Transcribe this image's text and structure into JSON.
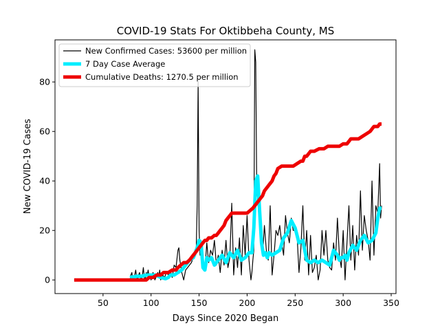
{
  "chart_data": {
    "type": "line",
    "title": "COVID-19 Stats For Oktibbeha County, MS",
    "xlabel": "Days Since 2020 Began",
    "ylabel": "New COVID-19 Cases",
    "xlim": [
      0,
      355
    ],
    "ylim": [
      -5.5,
      97
    ],
    "xticks": [
      50,
      100,
      150,
      200,
      250,
      300,
      350
    ],
    "yticks": [
      0,
      20,
      40,
      60,
      80
    ],
    "grid": false,
    "legend_position": "top-left",
    "series": [
      {
        "name": "New Confirmed Cases: 53600 per million",
        "color": "#000000",
        "line_width": 1.2,
        "x": [
          20,
          78,
          79,
          80,
          81,
          82,
          83,
          84,
          85,
          86,
          87,
          88,
          89,
          90,
          91,
          92,
          93,
          94,
          95,
          96,
          97,
          98,
          99,
          100,
          101,
          102,
          103,
          104,
          105,
          106,
          107,
          108,
          109,
          110,
          112,
          114,
          116,
          118,
          120,
          122,
          124,
          126,
          128,
          129,
          130,
          132,
          134,
          136,
          138,
          140,
          142,
          144,
          146,
          147,
          148,
          149,
          150,
          151,
          152,
          154,
          156,
          158,
          160,
          162,
          164,
          166,
          168,
          170,
          172,
          174,
          176,
          178,
          180,
          182,
          184,
          186,
          188,
          190,
          192,
          194,
          196,
          198,
          200,
          202,
          204,
          205,
          206,
          207,
          208,
          209,
          210,
          212,
          214,
          216,
          218,
          220,
          222,
          224,
          226,
          228,
          230,
          232,
          234,
          236,
          238,
          240,
          242,
          244,
          246,
          248,
          250,
          252,
          254,
          256,
          258,
          260,
          262,
          264,
          266,
          268,
          270,
          272,
          274,
          276,
          278,
          280,
          282,
          284,
          286,
          288,
          290,
          292,
          294,
          296,
          298,
          300,
          302,
          304,
          306,
          308,
          310,
          312,
          314,
          316,
          318,
          320,
          322,
          324,
          326,
          328,
          330,
          332,
          334,
          336,
          338,
          339,
          340
        ],
        "values": [
          0,
          0,
          2,
          3,
          0,
          1,
          2,
          4,
          1,
          0,
          2,
          3,
          1,
          0,
          2,
          5,
          1,
          0,
          3,
          2,
          4,
          1,
          2,
          0,
          1,
          3,
          2,
          0,
          1,
          2,
          3,
          1,
          4,
          0,
          2,
          1,
          3,
          2,
          4,
          1,
          6,
          5,
          12,
          13,
          8,
          3,
          0,
          4,
          5,
          6,
          7,
          9,
          10,
          12,
          30,
          80,
          20,
          10,
          16,
          8,
          4,
          15,
          7,
          12,
          10,
          16,
          6,
          10,
          3,
          12,
          6,
          16,
          5,
          9,
          31,
          2,
          13,
          5,
          17,
          2,
          22,
          10,
          26,
          8,
          0,
          3,
          8,
          12,
          93,
          88,
          38,
          27,
          18,
          10,
          22,
          12,
          8,
          30,
          2,
          10,
          20,
          18,
          22,
          15,
          10,
          26,
          19,
          15,
          25,
          20,
          20,
          18,
          3,
          13,
          30,
          8,
          20,
          2,
          18,
          3,
          5,
          10,
          0,
          4,
          20,
          10,
          20,
          8,
          5,
          4,
          15,
          8,
          25,
          10,
          5,
          20,
          0,
          15,
          30,
          8,
          22,
          4,
          18,
          10,
          36,
          12,
          26,
          20,
          16,
          8,
          40,
          10,
          30,
          27,
          47,
          25,
          30
        ]
      },
      {
        "name": "7 Day Case Average",
        "color": "#00eeff",
        "line_width": 5,
        "x": [
          78,
          85,
          90,
          95,
          100,
          105,
          110,
          115,
          118,
          120,
          124,
          128,
          132,
          136,
          140,
          144,
          148,
          150,
          152,
          154,
          156,
          158,
          160,
          163,
          166,
          170,
          174,
          178,
          182,
          186,
          190,
          194,
          198,
          202,
          205,
          207,
          209,
          211,
          213,
          215,
          217,
          219,
          221,
          223,
          226,
          230,
          234,
          238,
          242,
          246,
          250,
          254,
          258,
          262,
          266,
          270,
          274,
          278,
          282,
          286,
          290,
          294,
          296,
          298,
          300,
          302,
          304,
          306,
          310,
          314,
          318,
          322,
          326,
          330,
          334,
          336,
          338,
          340
        ],
        "values": [
          1,
          1.5,
          1.5,
          2,
          2,
          2,
          1,
          0.5,
          1,
          2,
          2,
          3,
          4,
          6,
          8,
          9,
          13,
          16,
          15,
          5,
          4,
          9,
          8,
          9,
          6,
          8,
          10,
          7,
          11,
          9,
          12,
          8,
          9,
          11,
          11,
          21,
          40,
          42,
          28,
          15,
          10,
          11,
          9,
          11,
          10,
          11,
          12,
          17,
          19,
          24,
          21,
          15,
          16,
          8,
          7,
          8,
          7,
          8,
          7,
          6,
          12,
          10,
          8,
          9,
          9,
          10,
          8,
          11,
          14,
          12,
          16,
          18,
          15,
          16,
          19,
          25,
          29,
          29
        ]
      },
      {
        "name": "Cumulative Deaths: 1270.5 per million",
        "color": "#ee0000",
        "line_width": 5,
        "x": [
          20,
          95,
          98,
          102,
          106,
          110,
          113,
          118,
          122,
          126,
          128,
          131,
          134,
          137,
          140,
          142,
          144,
          146,
          148,
          150,
          152,
          154,
          156,
          158,
          160,
          163,
          166,
          168,
          170,
          172,
          174,
          176,
          178,
          180,
          182,
          184,
          188,
          192,
          196,
          200,
          203,
          206,
          208,
          210,
          212,
          214,
          216,
          218,
          220,
          222,
          224,
          226,
          228,
          230,
          232,
          236,
          240,
          245,
          248,
          252,
          256,
          258,
          260,
          262,
          264,
          266,
          268,
          270,
          275,
          280,
          284,
          288,
          292,
          296,
          300,
          304,
          308,
          312,
          316,
          320,
          324,
          328,
          332,
          336,
          338,
          340
        ],
        "values": [
          0,
          0,
          1,
          1,
          2,
          2,
          3,
          3,
          4,
          4,
          5,
          6,
          7,
          7,
          8,
          9,
          10,
          11,
          12,
          13,
          14,
          15,
          16,
          16,
          17,
          17,
          18,
          18,
          19,
          20,
          21,
          22,
          24,
          25,
          26,
          27,
          27,
          27,
          27,
          27,
          28,
          29,
          30,
          31,
          32,
          33,
          34,
          36,
          37,
          38,
          39,
          40,
          42,
          43,
          45,
          46,
          46,
          46,
          46,
          47,
          48,
          48,
          50,
          50,
          51,
          52,
          52,
          52,
          53,
          53,
          54,
          54,
          54,
          54,
          55,
          55,
          57,
          57,
          57,
          58,
          59,
          60,
          62,
          62,
          63,
          63
        ]
      }
    ]
  }
}
